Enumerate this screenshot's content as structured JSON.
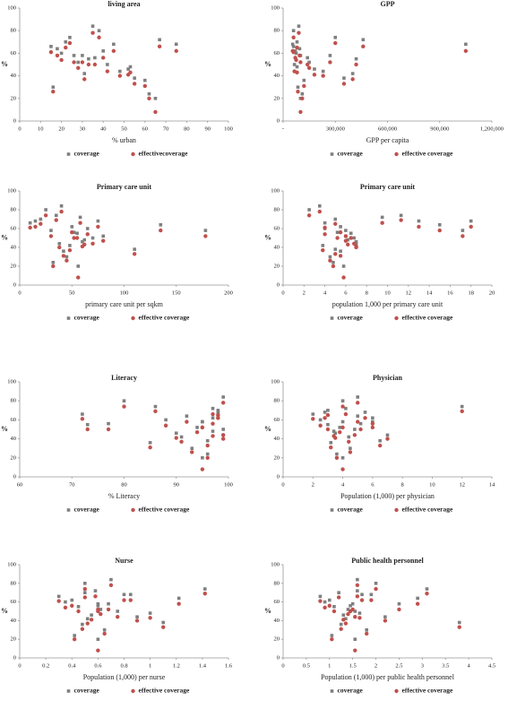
{
  "chart_data": [
    {
      "type": "scatter",
      "title": "living area",
      "xlabel": "% urban",
      "ylabel": "%",
      "x": [
        15,
        22,
        30,
        35,
        40,
        52,
        16,
        24,
        33,
        45,
        38,
        55,
        28,
        20,
        48,
        67,
        18,
        60,
        42,
        26,
        62,
        31,
        75,
        36,
        53,
        65
      ],
      "series": [
        {
          "name": "coverage",
          "color": "#7f7f7f",
          "values": [
            66,
            70,
            58,
            84,
            62,
            46,
            30,
            74,
            55,
            68,
            80,
            38,
            52,
            60,
            44,
            72,
            64,
            36,
            50,
            58,
            24,
            42,
            68,
            56,
            48,
            20
          ]
        },
        {
          "name": "effectivecoverage",
          "color": "#c0504d",
          "values": [
            61,
            65,
            52,
            78,
            56,
            41,
            26,
            69,
            50,
            62,
            74,
            33,
            47,
            54,
            40,
            66,
            58,
            31,
            44,
            52,
            20,
            37,
            62,
            50,
            43,
            8
          ]
        }
      ],
      "xlim": [
        0,
        100
      ],
      "xticks": [
        0,
        10,
        20,
        30,
        40,
        50,
        60,
        70,
        80,
        90,
        100
      ],
      "ylim": [
        0,
        100
      ],
      "yticks": [
        0,
        20,
        40,
        60,
        80,
        100
      ]
    },
    {
      "type": "scatter",
      "title": "GPP",
      "xlabel": "GPP per capita",
      "ylabel": "%",
      "x": [
        60000,
        80000,
        100000,
        90000,
        70000,
        180000,
        85000,
        300000,
        420000,
        1050000,
        60000,
        350000,
        150000,
        75000,
        230000,
        460000,
        95000,
        120000,
        65000,
        270000,
        110000,
        400000,
        55000,
        140000,
        80000,
        100000
      ],
      "series": [
        {
          "name": "coverage",
          "color": "#7f7f7f",
          "values": [
            66,
            70,
            58,
            84,
            62,
            46,
            30,
            74,
            55,
            68,
            80,
            38,
            52,
            60,
            44,
            72,
            64,
            36,
            50,
            58,
            24,
            42,
            68,
            56,
            48,
            20
          ]
        },
        {
          "name": "effective coverage",
          "color": "#c0504d",
          "values": [
            61,
            65,
            52,
            78,
            56,
            41,
            26,
            69,
            50,
            62,
            74,
            33,
            47,
            54,
            40,
            66,
            58,
            31,
            44,
            52,
            20,
            37,
            62,
            50,
            43,
            8
          ]
        }
      ],
      "xlim": [
        0,
        1200000
      ],
      "xticks": [
        {
          "value": 0,
          "label": "-"
        },
        {
          "value": 300000,
          "label": "300,000"
        },
        {
          "value": 600000,
          "label": "600,000"
        },
        {
          "value": 900000,
          "label": "900,000"
        },
        {
          "value": 1200000,
          "label": "1,200,000"
        }
      ],
      "ylim": [
        0,
        100
      ],
      "yticks": [
        0,
        20,
        40,
        60,
        80,
        100
      ]
    },
    {
      "type": "scatter",
      "title": "Primary care unit",
      "xlabel": "primary care unit per sqkm",
      "ylabel": "%",
      "x": [
        10,
        20,
        30,
        40,
        50,
        60,
        45,
        35,
        55,
        75,
        25,
        110,
        80,
        65,
        38,
        58,
        135,
        42,
        70,
        178,
        32,
        48,
        15,
        52,
        62,
        56
      ],
      "series": [
        {
          "name": "coverage",
          "color": "#7f7f7f",
          "values": [
            66,
            70,
            58,
            84,
            62,
            46,
            30,
            74,
            55,
            68,
            80,
            38,
            52,
            60,
            44,
            72,
            64,
            36,
            50,
            58,
            24,
            42,
            68,
            56,
            48,
            20
          ]
        },
        {
          "name": "effective coverage",
          "color": "#c0504d",
          "values": [
            61,
            65,
            52,
            78,
            56,
            41,
            26,
            69,
            50,
            62,
            74,
            33,
            47,
            54,
            40,
            66,
            58,
            31,
            44,
            52,
            20,
            37,
            62,
            50,
            43,
            8
          ]
        }
      ],
      "xlim": [
        0,
        200
      ],
      "xticks": [
        0,
        50,
        100,
        150,
        200
      ],
      "ylim": [
        0,
        100
      ],
      "yticks": [
        0,
        20,
        40,
        60,
        80,
        100
      ]
    },
    {
      "type": "scatter",
      "title": "Primary care unit",
      "xlabel": "population 1,000 per primary care unit",
      "ylabel": "%",
      "x": [
        4,
        5,
        6,
        3.5,
        5.5,
        7,
        4.5,
        11.3,
        6.5,
        13,
        2.5,
        5,
        6,
        4,
        7,
        9.5,
        15,
        5.5,
        6.8,
        17.2,
        4.8,
        3.8,
        18,
        5.2,
        6.2,
        5.8
      ],
      "series": [
        {
          "name": "coverage",
          "color": "#7f7f7f",
          "values": [
            66,
            70,
            58,
            84,
            62,
            46,
            30,
            74,
            55,
            68,
            80,
            38,
            52,
            60,
            44,
            72,
            64,
            36,
            50,
            58,
            24,
            42,
            68,
            56,
            48,
            20
          ]
        },
        {
          "name": "effective coverage",
          "color": "#c0504d",
          "values": [
            61,
            65,
            52,
            78,
            56,
            41,
            26,
            69,
            50,
            62,
            74,
            33,
            47,
            54,
            40,
            66,
            58,
            31,
            44,
            52,
            20,
            37,
            62,
            50,
            43,
            8
          ]
        }
      ],
      "xlim": [
        0,
        20
      ],
      "xticks": [
        0,
        2,
        4,
        6,
        8,
        10,
        12,
        14,
        16,
        18,
        20
      ],
      "ylim": [
        0,
        100
      ],
      "yticks": [
        0,
        20,
        40,
        60,
        80,
        100
      ]
    },
    {
      "type": "scatter",
      "title": "Literacy",
      "xlabel": "% Literacy",
      "ylabel": "%",
      "x": [
        72,
        98,
        95,
        99,
        97,
        90,
        93,
        86,
        73,
        98,
        80,
        96,
        94,
        88,
        99,
        97,
        92,
        85,
        99,
        95,
        96,
        91,
        98,
        77,
        97,
        95
      ],
      "series": [
        {
          "name": "coverage",
          "color": "#7f7f7f",
          "values": [
            66,
            70,
            58,
            84,
            62,
            46,
            30,
            74,
            55,
            68,
            80,
            38,
            52,
            60,
            44,
            72,
            64,
            36,
            50,
            58,
            24,
            42,
            68,
            56,
            48,
            20
          ]
        },
        {
          "name": "effective coverage",
          "color": "#c0504d",
          "values": [
            61,
            65,
            52,
            78,
            56,
            41,
            26,
            69,
            50,
            62,
            74,
            33,
            47,
            54,
            40,
            66,
            58,
            31,
            44,
            52,
            20,
            37,
            62,
            50,
            43,
            8
          ]
        }
      ],
      "xlim": [
        60,
        100
      ],
      "xticks": [
        60,
        70,
        80,
        90,
        100
      ],
      "ylim": [
        0,
        100
      ],
      "yticks": [
        0,
        20,
        40,
        60,
        80,
        100
      ]
    },
    {
      "type": "scatter",
      "title": "Physician",
      "xlabel": "Population (1,000) per physician",
      "ylabel": "%",
      "x": [
        2,
        3,
        4,
        5,
        6,
        3.5,
        4.5,
        12,
        3,
        5.5,
        4,
        6.5,
        3.8,
        2.5,
        7,
        4.2,
        5,
        3.2,
        4.8,
        6,
        3.6,
        4.4,
        2.8,
        5.2,
        3.4,
        4
      ],
      "series": [
        {
          "name": "coverage",
          "color": "#7f7f7f",
          "values": [
            66,
            70,
            58,
            84,
            62,
            46,
            30,
            74,
            55,
            68,
            80,
            38,
            52,
            60,
            44,
            72,
            64,
            36,
            50,
            58,
            24,
            42,
            68,
            56,
            48,
            20
          ]
        },
        {
          "name": "effective coverage",
          "color": "#c0504d",
          "values": [
            61,
            65,
            52,
            78,
            56,
            41,
            26,
            69,
            50,
            62,
            74,
            33,
            47,
            54,
            40,
            66,
            58,
            31,
            44,
            52,
            20,
            37,
            62,
            50,
            43,
            8
          ]
        }
      ],
      "xlim": [
        0,
        14
      ],
      "xticks": [
        0,
        2,
        4,
        6,
        8,
        10,
        12,
        14
      ],
      "ylim": [
        0,
        100
      ],
      "yticks": [
        0,
        20,
        40,
        60,
        80,
        100
      ]
    },
    {
      "type": "scatter",
      "title": "Nurse",
      "xlabel": "Population (1,000) per nurse",
      "ylabel": "%",
      "x": [
        0.3,
        0.5,
        0.6,
        0.7,
        0.4,
        0.55,
        0.65,
        1.42,
        0.45,
        0.8,
        0.5,
        1.1,
        0.62,
        0.35,
        0.9,
        0.58,
        1.22,
        0.48,
        0.75,
        0.68,
        0.42,
        0.52,
        0.85,
        0.6,
        1.0,
        0.6
      ],
      "series": [
        {
          "name": "coverage",
          "color": "#7f7f7f",
          "values": [
            66,
            70,
            58,
            84,
            62,
            46,
            30,
            74,
            55,
            68,
            80,
            38,
            52,
            60,
            44,
            72,
            64,
            36,
            50,
            58,
            24,
            42,
            68,
            56,
            48,
            20
          ]
        },
        {
          "name": "effective coverage",
          "color": "#c0504d",
          "values": [
            61,
            65,
            52,
            78,
            56,
            41,
            26,
            69,
            50,
            62,
            74,
            33,
            47,
            54,
            40,
            66,
            58,
            31,
            44,
            52,
            20,
            37,
            62,
            50,
            43,
            8
          ]
        }
      ],
      "xlim": [
        0,
        1.6
      ],
      "xticks": [
        0,
        0.2,
        0.4,
        0.6,
        0.8,
        1,
        1.2,
        1.4,
        1.6
      ],
      "ylim": [
        0,
        100
      ],
      "yticks": [
        0,
        20,
        40,
        60,
        80,
        100
      ]
    },
    {
      "type": "scatter",
      "title": "Public health personnel",
      "xlabel": "Population (1,000) per public health personnel",
      "ylabel": "%",
      "x": [
        0.8,
        1.2,
        1.5,
        1.6,
        1.0,
        1.3,
        1.8,
        3.1,
        1.1,
        1.7,
        2.0,
        3.8,
        1.4,
        0.9,
        2.2,
        1.6,
        2.9,
        1.25,
        1.55,
        2.5,
        1.05,
        1.35,
        1.9,
        1.45,
        1.65,
        1.55
      ],
      "series": [
        {
          "name": "coverage",
          "color": "#7f7f7f",
          "values": [
            66,
            70,
            58,
            84,
            62,
            46,
            30,
            74,
            55,
            68,
            80,
            38,
            52,
            60,
            44,
            72,
            64,
            36,
            50,
            58,
            24,
            42,
            68,
            56,
            48,
            20
          ]
        },
        {
          "name": "effective coverage",
          "color": "#c0504d",
          "values": [
            61,
            65,
            52,
            78,
            56,
            41,
            26,
            69,
            50,
            62,
            74,
            33,
            47,
            54,
            40,
            66,
            58,
            31,
            44,
            52,
            20,
            37,
            62,
            50,
            43,
            8
          ]
        }
      ],
      "xlim": [
        0,
        4.5
      ],
      "xticks": [
        0,
        0.5,
        1,
        1.5,
        2,
        2.5,
        3,
        3.5,
        4,
        4.5
      ],
      "ylim": [
        0,
        100
      ],
      "yticks": [
        0,
        20,
        40,
        60,
        80,
        100
      ]
    }
  ]
}
